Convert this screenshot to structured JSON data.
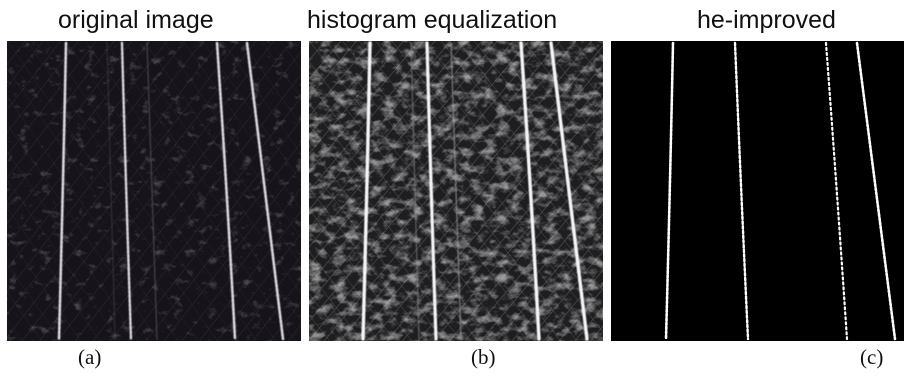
{
  "panels": [
    {
      "id": "a",
      "title": "original image",
      "caption": "(a)",
      "background": "#16141a",
      "line_color": "#d8d5dc",
      "texture": "dark-crosshatch"
    },
    {
      "id": "b",
      "title": "histogram equalization",
      "caption": "(b)",
      "background": "#1e1e20",
      "line_color": "#f4f4f4",
      "texture": "bright-crosshatch"
    },
    {
      "id": "c",
      "title": "he-improved",
      "caption": "(c)",
      "background": "#000000",
      "line_color": "#ffffff",
      "texture": "none"
    }
  ]
}
